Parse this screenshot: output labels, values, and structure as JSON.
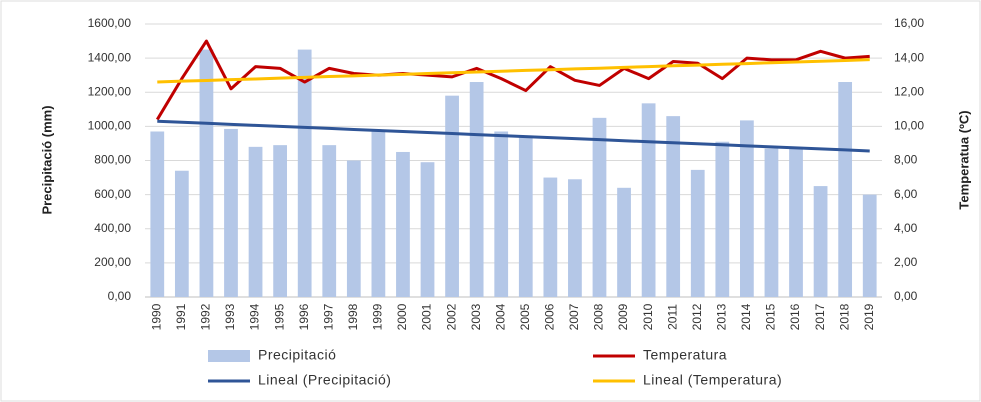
{
  "chart_data": {
    "type": "bar-line",
    "y_label": "Precipitació (mm)",
    "y2_label": "Temperatua (ºC)",
    "categories": [
      "1990",
      "1991",
      "1992",
      "1993",
      "1994",
      "1995",
      "1996",
      "1997",
      "1998",
      "1999",
      "2000",
      "2001",
      "2002",
      "2003",
      "2004",
      "2005",
      "2006",
      "2007",
      "2008",
      "2009",
      "2010",
      "2011",
      "2012",
      "2013",
      "2014",
      "2015",
      "2016",
      "2017",
      "2018",
      "2019"
    ],
    "series": [
      {
        "name": "Precipitació",
        "type": "bar",
        "color": "#b4c7e7",
        "values": [
          970,
          740,
          1450,
          985,
          880,
          890,
          1450,
          890,
          800,
          980,
          850,
          790,
          1180,
          1260,
          970,
          940,
          700,
          690,
          1050,
          640,
          1135,
          1060,
          745,
          910,
          1035,
          870,
          870,
          650,
          1260,
          600
        ]
      },
      {
        "name": "Temperatura",
        "type": "line",
        "axis": "y2",
        "color": "#c00000",
        "values": [
          10.4,
          12.8,
          15.0,
          12.2,
          13.5,
          13.4,
          12.6,
          13.4,
          13.1,
          13.0,
          13.1,
          13.0,
          12.9,
          13.4,
          12.8,
          12.1,
          13.5,
          12.7,
          12.4,
          13.4,
          12.8,
          13.8,
          13.7,
          12.8,
          14.0,
          13.9,
          13.9,
          14.4,
          14.0,
          14.1
        ]
      },
      {
        "name": "Lineal (Precipitació)",
        "type": "line",
        "color": "#2f5597",
        "values": [
          1030,
          1024,
          1018,
          1012,
          1006,
          1000,
          994,
          988,
          982,
          976,
          970,
          964,
          958,
          952,
          946,
          940,
          934,
          928,
          922,
          916,
          910,
          904,
          898,
          892,
          886,
          880,
          874,
          868,
          862,
          856
        ]
      },
      {
        "name": "Lineal (Temperatura)",
        "type": "line",
        "axis": "y2",
        "color": "#ffc000",
        "values": [
          12.6,
          12.65,
          12.69,
          12.74,
          12.78,
          12.83,
          12.87,
          12.92,
          12.96,
          13.01,
          13.05,
          13.1,
          13.14,
          13.19,
          13.23,
          13.28,
          13.32,
          13.37,
          13.41,
          13.46,
          13.5,
          13.55,
          13.59,
          13.64,
          13.68,
          13.73,
          13.77,
          13.82,
          13.86,
          13.91
        ]
      }
    ],
    "ylim": [
      0,
      1600
    ],
    "yticks": [
      {
        "value": 0,
        "label": "0,00"
      },
      {
        "value": 200,
        "label": "200,00"
      },
      {
        "value": 400,
        "label": "400,00"
      },
      {
        "value": 600,
        "label": "600,00"
      },
      {
        "value": 800,
        "label": "800,00"
      },
      {
        "value": 1000,
        "label": "1000,00"
      },
      {
        "value": 1200,
        "label": "1200,00"
      },
      {
        "value": 1400,
        "label": "1400,00"
      },
      {
        "value": 1600,
        "label": "1600,00"
      }
    ],
    "y2lim": [
      0,
      16
    ],
    "y2ticks": [
      {
        "value": 0,
        "label": "0,00"
      },
      {
        "value": 2,
        "label": "2,00"
      },
      {
        "value": 4,
        "label": "4,00"
      },
      {
        "value": 6,
        "label": "6,00"
      },
      {
        "value": 8,
        "label": "8,00"
      },
      {
        "value": 10,
        "label": "10,00"
      },
      {
        "value": 12,
        "label": "12,00"
      },
      {
        "value": 14,
        "label": "14,00"
      },
      {
        "value": 16,
        "label": "16,00"
      }
    ],
    "grid": true
  }
}
